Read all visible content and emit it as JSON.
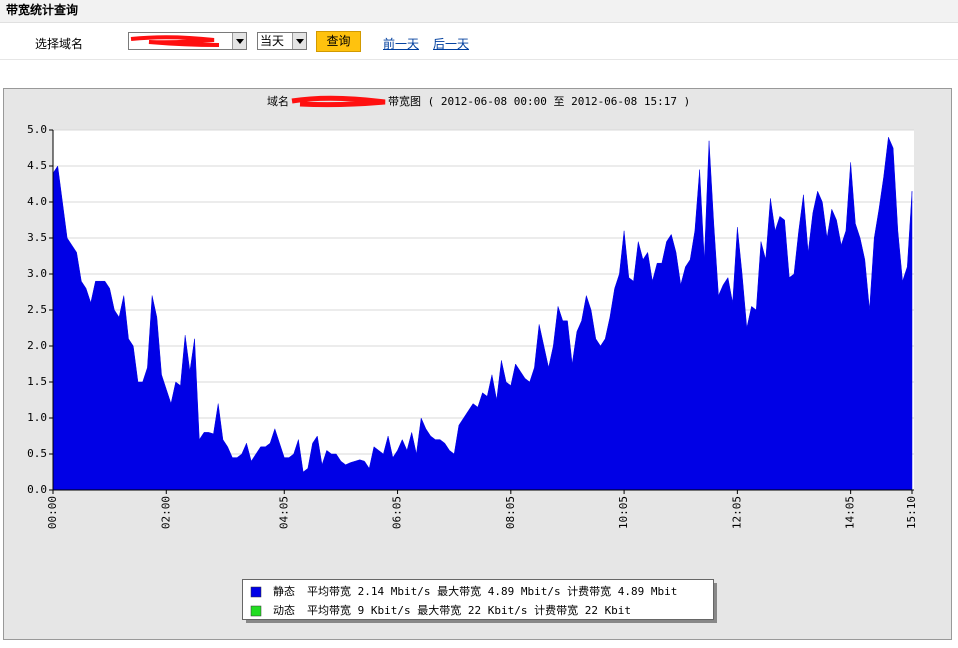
{
  "header": {
    "title": "带宽统计查询"
  },
  "form": {
    "label": "选择域名",
    "period": "当天",
    "button": "查询",
    "links": [
      "前一天",
      "后一天"
    ]
  },
  "chart_data": {
    "type": "area",
    "title_parts": [
      "域名",
      "带宽图 ( 2012-06-08 00:00 至 2012-06-08 15:17 )"
    ],
    "categories": [
      "00:00",
      null,
      null,
      null,
      null,
      null,
      null,
      null,
      null,
      null,
      null,
      null,
      null,
      null,
      null,
      null,
      null,
      null,
      null,
      null,
      null,
      null,
      null,
      null,
      "02:00",
      null,
      null,
      null,
      null,
      null,
      null,
      null,
      null,
      null,
      null,
      null,
      null,
      null,
      null,
      null,
      null,
      null,
      null,
      null,
      null,
      null,
      null,
      null,
      null,
      "04:05",
      null,
      null,
      null,
      null,
      null,
      null,
      null,
      null,
      null,
      null,
      null,
      null,
      null,
      null,
      null,
      null,
      null,
      null,
      null,
      null,
      null,
      null,
      null,
      "06:05",
      null,
      null,
      null,
      null,
      null,
      null,
      null,
      null,
      null,
      null,
      null,
      null,
      null,
      null,
      null,
      null,
      null,
      null,
      null,
      null,
      null,
      null,
      null,
      "08:05",
      null,
      null,
      null,
      null,
      null,
      null,
      null,
      null,
      null,
      null,
      null,
      null,
      null,
      null,
      null,
      null,
      null,
      null,
      null,
      null,
      null,
      null,
      null,
      "10:05",
      null,
      null,
      null,
      null,
      null,
      null,
      null,
      null,
      null,
      null,
      null,
      null,
      null,
      null,
      null,
      null,
      null,
      null,
      null,
      null,
      null,
      null,
      null,
      "12:05",
      null,
      null,
      null,
      null,
      null,
      null,
      null,
      null,
      null,
      null,
      null,
      null,
      null,
      null,
      null,
      null,
      null,
      null,
      null,
      null,
      null,
      null,
      null,
      "14:05",
      null,
      null,
      null,
      null,
      null,
      null,
      null,
      null,
      null,
      null,
      null,
      null,
      "15:10"
    ],
    "series": [
      {
        "name": "静态",
        "summary": "平均带宽 2.14 Mbit/s 最大带宽 4.89 Mbit/s 计费带宽 4.89 Mbit",
        "color": "#0000e6",
        "values": [
          4.4,
          4.5,
          4.0,
          3.5,
          3.4,
          3.3,
          2.9,
          2.8,
          2.6,
          2.9,
          2.9,
          2.9,
          2.8,
          2.5,
          2.4,
          2.7,
          2.1,
          2.0,
          1.5,
          1.5,
          1.7,
          2.7,
          2.4,
          1.6,
          1.4,
          1.2,
          1.5,
          1.45,
          2.15,
          1.65,
          2.1,
          0.7,
          0.8,
          0.8,
          0.78,
          1.2,
          0.7,
          0.6,
          0.45,
          0.45,
          0.5,
          0.65,
          0.4,
          0.5,
          0.6,
          0.6,
          0.65,
          0.85,
          0.65,
          0.45,
          0.45,
          0.5,
          0.7,
          0.25,
          0.3,
          0.65,
          0.75,
          0.35,
          0.55,
          0.5,
          0.5,
          0.4,
          0.35,
          0.38,
          0.4,
          0.42,
          0.4,
          0.3,
          0.6,
          0.55,
          0.5,
          0.75,
          0.45,
          0.55,
          0.7,
          0.55,
          0.8,
          0.5,
          1.0,
          0.85,
          0.75,
          0.7,
          0.7,
          0.65,
          0.55,
          0.5,
          0.9,
          1.0,
          1.1,
          1.2,
          1.15,
          1.35,
          1.3,
          1.6,
          1.25,
          1.8,
          1.5,
          1.45,
          1.75,
          1.65,
          1.55,
          1.5,
          1.7,
          2.3,
          2.0,
          1.7,
          2.0,
          2.55,
          2.35,
          2.35,
          1.75,
          2.2,
          2.35,
          2.7,
          2.5,
          2.1,
          2.0,
          2.1,
          2.4,
          2.8,
          3.0,
          3.6,
          2.95,
          2.9,
          3.45,
          3.2,
          3.3,
          2.9,
          3.15,
          3.15,
          3.45,
          3.55,
          3.3,
          2.85,
          3.1,
          3.2,
          3.6,
          4.45,
          3.2,
          4.85,
          3.7,
          2.7,
          2.85,
          2.95,
          2.6,
          3.65,
          3.0,
          2.25,
          2.55,
          2.5,
          3.45,
          3.2,
          4.05,
          3.6,
          3.8,
          3.75,
          2.95,
          3.0,
          3.6,
          4.1,
          3.3,
          3.85,
          4.15,
          4.0,
          3.5,
          3.9,
          3.75,
          3.4,
          3.6,
          4.55,
          3.7,
          3.5,
          3.2,
          2.5,
          3.5,
          3.9,
          4.35,
          4.9,
          4.75,
          3.6,
          2.9,
          3.1,
          4.15
        ]
      },
      {
        "name": "动态",
        "summary": "平均带宽 9 Kbit/s 最大带宽 22 Kbit/s 计费带宽 22 Kbit",
        "color": "#22dd22"
      }
    ],
    "ylim": [
      0,
      5
    ],
    "yticks": [
      {
        "value": 0,
        "label": "0.0"
      },
      0.5,
      {
        "value": 1,
        "label": "1.0"
      },
      1.5,
      {
        "value": 2,
        "label": "2.0"
      },
      2.5,
      {
        "value": 3,
        "label": "3.0"
      },
      3.5,
      {
        "value": 4,
        "label": "4.0"
      },
      4.5,
      {
        "value": 5,
        "label": "5.0"
      }
    ],
    "grid": true
  }
}
